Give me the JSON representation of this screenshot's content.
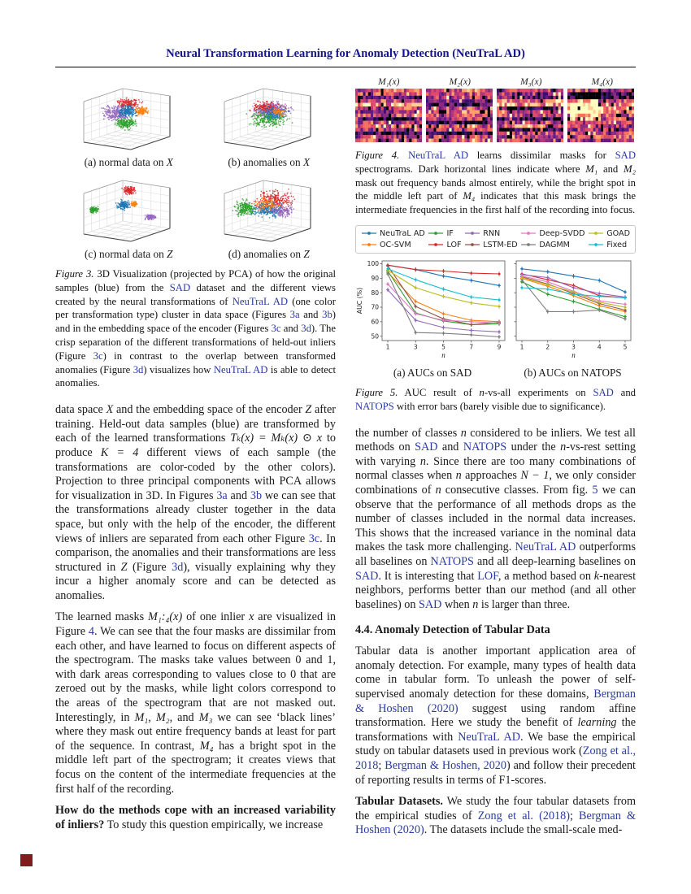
{
  "page": {
    "title": "Neural Transformation Learning for Anomaly Detection (NeuTraL AD)"
  },
  "colors": {
    "header_blue": "#14148c",
    "link_blue": "#2b3aa5"
  },
  "figure3": {
    "subcaptions": [
      [
        {
          "t": "(a) normal data on "
        },
        {
          "t": "X",
          "s": "m"
        }
      ],
      [
        {
          "t": "(b) anomalies on "
        },
        {
          "t": "X",
          "s": "m"
        }
      ],
      [
        {
          "t": "(c) normal data on "
        },
        {
          "t": "Z",
          "s": "m"
        }
      ],
      [
        {
          "t": "(d) anomalies on "
        },
        {
          "t": "Z",
          "s": "m"
        }
      ]
    ],
    "cluster_colors": {
      "original_samples": "#1f77b4",
      "transform_red": "#d62728",
      "transform_green": "#2ca02c",
      "transform_orange": "#ff7f0e",
      "transform_purple": "#9467bd"
    },
    "caption": [
      {
        "t": "Figure 3.",
        "s": "i"
      },
      {
        "t": " 3D Visualization (projected by PCA) of how the original samples (blue) from the "
      },
      {
        "t": "SAD",
        "s": "l"
      },
      {
        "t": " dataset and the different views created by the neural transformations of "
      },
      {
        "t": "NeuTraL AD",
        "s": "l"
      },
      {
        "t": " (one color per transformation type) cluster in data space (Figures "
      },
      {
        "t": "3a",
        "s": "l"
      },
      {
        "t": " and "
      },
      {
        "t": "3b",
        "s": "l"
      },
      {
        "t": ") and in the embedding space of the encoder (Figures "
      },
      {
        "t": "3c",
        "s": "l"
      },
      {
        "t": " and "
      },
      {
        "t": "3d",
        "s": "l"
      },
      {
        "t": "). The crisp separation of the different transformations of held-out inliers (Figure "
      },
      {
        "t": "3c",
        "s": "l"
      },
      {
        "t": ") in contrast to the overlap between transformed anomalies (Figure "
      },
      {
        "t": "3d",
        "s": "l"
      },
      {
        "t": ") visualizes how "
      },
      {
        "t": "NeuTraL AD",
        "s": "l"
      },
      {
        "t": " is able to detect anomalies."
      }
    ]
  },
  "figure4": {
    "panel_labels": [
      "M₁(x)",
      "M₂(x)",
      "M₃(x)",
      "M₄(x)"
    ],
    "caption": [
      {
        "t": "Figure 4.",
        "s": "i"
      },
      {
        "t": " "
      },
      {
        "t": "NeuTraL AD",
        "s": "l"
      },
      {
        "t": " learns dissimilar masks for "
      },
      {
        "t": "SAD",
        "s": "l"
      },
      {
        "t": " spectrograms. Dark horizontal lines indicate where "
      },
      {
        "t": "M₁",
        "s": "m"
      },
      {
        "t": " and "
      },
      {
        "t": "M₂",
        "s": "m"
      },
      {
        "t": " mask out frequency bands almost entirely, while the bright spot in the middle left part of "
      },
      {
        "t": "M₄",
        "s": "m"
      },
      {
        "t": " indicates that this mask brings the intermediate frequencies in the first half of the recording into focus."
      }
    ]
  },
  "figure5": {
    "legend": [
      {
        "name": "NeuTraL AD",
        "color": "#1f77b4"
      },
      {
        "name": "OC-SVM",
        "color": "#ff7f0e"
      },
      {
        "name": "IF",
        "color": "#2ca02c"
      },
      {
        "name": "LOF",
        "color": "#d62728"
      },
      {
        "name": "RNN",
        "color": "#9467bd"
      },
      {
        "name": "LSTM-ED",
        "color": "#8c564b"
      },
      {
        "name": "Deep-SVDD",
        "color": "#e377c2"
      },
      {
        "name": "DAGMM",
        "color": "#7f7f7f"
      },
      {
        "name": "GOAD",
        "color": "#bcbd22"
      },
      {
        "name": "Fixed",
        "color": "#17becf"
      }
    ],
    "subcaptions": [
      "(a) AUCs on SAD",
      "(b) AUCs on NATOPS"
    ],
    "caption": [
      {
        "t": "Figure 5.",
        "s": "i"
      },
      {
        "t": " AUC result of "
      },
      {
        "t": "n",
        "s": "m"
      },
      {
        "t": "-vs-all experiments on "
      },
      {
        "t": "SAD",
        "s": "l"
      },
      {
        "t": " and "
      },
      {
        "t": "NATOPS",
        "s": "l"
      },
      {
        "t": " with error bars (barely visible due to significance)."
      }
    ]
  },
  "chart_data": [
    {
      "type": "line",
      "title": "(a) AUCs on SAD",
      "xlabel": "n",
      "ylabel": "AUC (%)",
      "x": [
        1,
        3,
        5,
        7,
        9
      ],
      "ylim": [
        47,
        102
      ],
      "yticks": [
        50,
        60,
        70,
        80,
        90,
        100
      ],
      "series": [
        {
          "name": "NeuTraL AD",
          "color": "#1f77b4",
          "values": [
            99,
            96,
            91.5,
            88.5,
            85
          ]
        },
        {
          "name": "OC-SVM",
          "color": "#ff7f0e",
          "values": [
            94,
            74,
            65.5,
            61,
            60
          ]
        },
        {
          "name": "IF",
          "color": "#2ca02c",
          "values": [
            95,
            66,
            60.5,
            58,
            58.5
          ]
        },
        {
          "name": "LOF",
          "color": "#d62728",
          "values": [
            99,
            96,
            95,
            93.5,
            93
          ]
        },
        {
          "name": "RNN",
          "color": "#9467bd",
          "values": [
            82,
            61,
            56,
            54,
            53
          ]
        },
        {
          "name": "LSTM-ED",
          "color": "#8c564b",
          "values": [
            98.5,
            70.5,
            62,
            58,
            59.5
          ]
        },
        {
          "name": "Deep-SVDD",
          "color": "#e377c2",
          "values": [
            86,
            65.5,
            61,
            60,
            59
          ]
        },
        {
          "name": "DAGMM",
          "color": "#7f7f7f",
          "values": [
            93,
            52.5,
            52,
            51,
            49.5
          ]
        },
        {
          "name": "GOAD",
          "color": "#bcbd22",
          "values": [
            95.5,
            83.5,
            77.5,
            73,
            70.5
          ]
        },
        {
          "name": "Fixed",
          "color": "#17becf",
          "values": [
            96.5,
            89,
            82.5,
            77,
            75
          ]
        }
      ]
    },
    {
      "type": "line",
      "title": "(b) AUCs on NATOPS",
      "xlabel": "n",
      "ylabel": "",
      "x": [
        1,
        2,
        3,
        4,
        5
      ],
      "ylim": [
        47,
        102
      ],
      "yticks": [
        50,
        60,
        70,
        80,
        90,
        100
      ],
      "series": [
        {
          "name": "NeuTraL AD",
          "color": "#1f77b4",
          "values": [
            96.5,
            94.5,
            91.5,
            88.5,
            80.5
          ]
        },
        {
          "name": "OC-SVM",
          "color": "#ff7f0e",
          "values": [
            90,
            84.5,
            78,
            71,
            67
          ]
        },
        {
          "name": "IF",
          "color": "#2ca02c",
          "values": [
            87.5,
            79,
            74,
            68.5,
            63.5
          ]
        },
        {
          "name": "LOF",
          "color": "#d62728",
          "values": [
            93,
            89,
            85,
            78,
            76.5
          ]
        },
        {
          "name": "RNN",
          "color": "#9467bd",
          "values": [
            92.5,
            90.5,
            83.5,
            79.5,
            77
          ]
        },
        {
          "name": "LSTM-ED",
          "color": "#8c564b",
          "values": [
            91,
            86,
            79.5,
            72.5,
            68
          ]
        },
        {
          "name": "Deep-SVDD",
          "color": "#e377c2",
          "values": [
            91.5,
            87.5,
            81,
            74.5,
            72
          ]
        },
        {
          "name": "DAGMM",
          "color": "#7f7f7f",
          "values": [
            89,
            67,
            67,
            68,
            62
          ]
        },
        {
          "name": "GOAD",
          "color": "#bcbd22",
          "values": [
            90.5,
            85.5,
            80.5,
            73.5,
            70
          ]
        },
        {
          "name": "Fixed",
          "color": "#17becf",
          "values": [
            83.5,
            82.5,
            79,
            77.5,
            76.5
          ]
        }
      ]
    }
  ],
  "left_column": {
    "para1": [
      {
        "t": "data space "
      },
      {
        "t": "X",
        "s": "m"
      },
      {
        "t": " and the embedding space of the encoder "
      },
      {
        "t": "Z",
        "s": "m"
      },
      {
        "t": " after training. Held-out data samples (blue) are transformed by each of the learned transformations "
      },
      {
        "t": "Tₖ(x) = Mₖ(x) ⊙ x",
        "s": "m"
      },
      {
        "t": " to produce "
      },
      {
        "t": "K = 4",
        "s": "m"
      },
      {
        "t": " different views of each sample (the transformations are color-coded by the other colors). Projection to three principal components with PCA allows for visualization in 3D. In Figures "
      },
      {
        "t": "3a",
        "s": "l"
      },
      {
        "t": " and "
      },
      {
        "t": "3b",
        "s": "l"
      },
      {
        "t": " we can see that the transformations already cluster together in the data space, but only with the help of the encoder, the different views of inliers are separated from each other Figure "
      },
      {
        "t": "3c",
        "s": "l"
      },
      {
        "t": ". In comparison, the anomalies and their transformations are less structured in "
      },
      {
        "t": "Z",
        "s": "m"
      },
      {
        "t": " (Figure "
      },
      {
        "t": "3d",
        "s": "l"
      },
      {
        "t": "), visually explaining why they incur a higher anomaly score and can be detected as anomalies."
      }
    ],
    "para2": [
      {
        "t": "The learned masks "
      },
      {
        "t": "M₁:₄(x)",
        "s": "m"
      },
      {
        "t": " of one inlier "
      },
      {
        "t": "x",
        "s": "m"
      },
      {
        "t": " are visualized in Figure "
      },
      {
        "t": "4",
        "s": "l"
      },
      {
        "t": ". We can see that the four masks are dissimilar from each other, and have learned to focus on different aspects of the spectrogram. The masks take values between 0 and 1, with dark areas corresponding to values close to 0 that are zeroed out by the masks, while light colors correspond to the areas of the spectrogram that are not masked out. Interestingly, in "
      },
      {
        "t": "M₁",
        "s": "m"
      },
      {
        "t": ", "
      },
      {
        "t": "M₂",
        "s": "m"
      },
      {
        "t": ", and "
      },
      {
        "t": "M₃",
        "s": "m"
      },
      {
        "t": " we can see ‘black lines’ where they mask out entire frequency bands at least for part of the sequence. In contrast, "
      },
      {
        "t": "M₄",
        "s": "m"
      },
      {
        "t": " has a bright spot in the middle left part of the spectrogram; it creates views that focus on the content of the intermediate frequencies at the first half of the recording."
      }
    ],
    "para3": [
      {
        "t": "How do the methods cope with an increased variability of inliers?",
        "s": "b"
      },
      {
        "t": "  To study this question empirically, we increase"
      }
    ]
  },
  "right_column": {
    "para1": [
      {
        "t": "the number of classes "
      },
      {
        "t": "n",
        "s": "m"
      },
      {
        "t": " considered to be inliers. We test all methods on "
      },
      {
        "t": "SAD",
        "s": "l"
      },
      {
        "t": " and "
      },
      {
        "t": "NATOPS",
        "s": "l"
      },
      {
        "t": " under the "
      },
      {
        "t": "n",
        "s": "m"
      },
      {
        "t": "-vs-rest setting with varying "
      },
      {
        "t": "n",
        "s": "m"
      },
      {
        "t": ". Since there are too many combinations of normal classes when "
      },
      {
        "t": "n",
        "s": "m"
      },
      {
        "t": " approaches "
      },
      {
        "t": "N − 1",
        "s": "m"
      },
      {
        "t": ", we only consider combinations of "
      },
      {
        "t": "n",
        "s": "m"
      },
      {
        "t": " consecutive classes. From fig. "
      },
      {
        "t": "5",
        "s": "l"
      },
      {
        "t": " we can observe that the performance of all methods drops as the number of classes included in the normal data increases. This shows that the increased variance in the nominal data makes the task more challenging. "
      },
      {
        "t": "NeuTraL AD",
        "s": "l"
      },
      {
        "t": " outperforms all baselines on "
      },
      {
        "t": "NATOPS",
        "s": "l"
      },
      {
        "t": " and all deep-learning baselines on "
      },
      {
        "t": "SAD",
        "s": "l"
      },
      {
        "t": ". It is interesting that "
      },
      {
        "t": "LOF",
        "s": "l"
      },
      {
        "t": ", a method based on "
      },
      {
        "t": "k",
        "s": "m"
      },
      {
        "t": "-nearest neighbors, performs better than our method (and all other baselines) on "
      },
      {
        "t": "SAD",
        "s": "l"
      },
      {
        "t": " when "
      },
      {
        "t": "n",
        "s": "m"
      },
      {
        "t": " is larger than three."
      }
    ],
    "heading": "4.4. Anomaly Detection of Tabular Data",
    "para2": [
      {
        "t": "Tabular data is another important application area of anomaly detection.  For example, many types of health data come in tabular form. To unleash the power of self-supervised anomaly detection for these domains, "
      },
      {
        "t": "Bergman & Hoshen (2020)",
        "s": "l"
      },
      {
        "t": " suggest using random affine transformation. Here we study the benefit of "
      },
      {
        "t": "learning",
        "s": "i"
      },
      {
        "t": " the transformations with "
      },
      {
        "t": "NeuTraL AD",
        "s": "l"
      },
      {
        "t": ". We base the empirical study on tabular datasets used in previous work ("
      },
      {
        "t": "Zong et al., 2018",
        "s": "l"
      },
      {
        "t": "; "
      },
      {
        "t": "Bergman & Hoshen, 2020",
        "s": "l"
      },
      {
        "t": ") and follow their precedent of reporting results in terms of F1-scores."
      }
    ],
    "para3": [
      {
        "t": "Tabular Datasets.",
        "s": "b"
      },
      {
        "t": "  We study the four tabular datasets from the empirical studies of "
      },
      {
        "t": "Zong et al. (2018)",
        "s": "l"
      },
      {
        "t": "; "
      },
      {
        "t": "Bergman & Hoshen (2020)",
        "s": "l"
      },
      {
        "t": ". The datasets include the small-scale med-"
      }
    ]
  }
}
